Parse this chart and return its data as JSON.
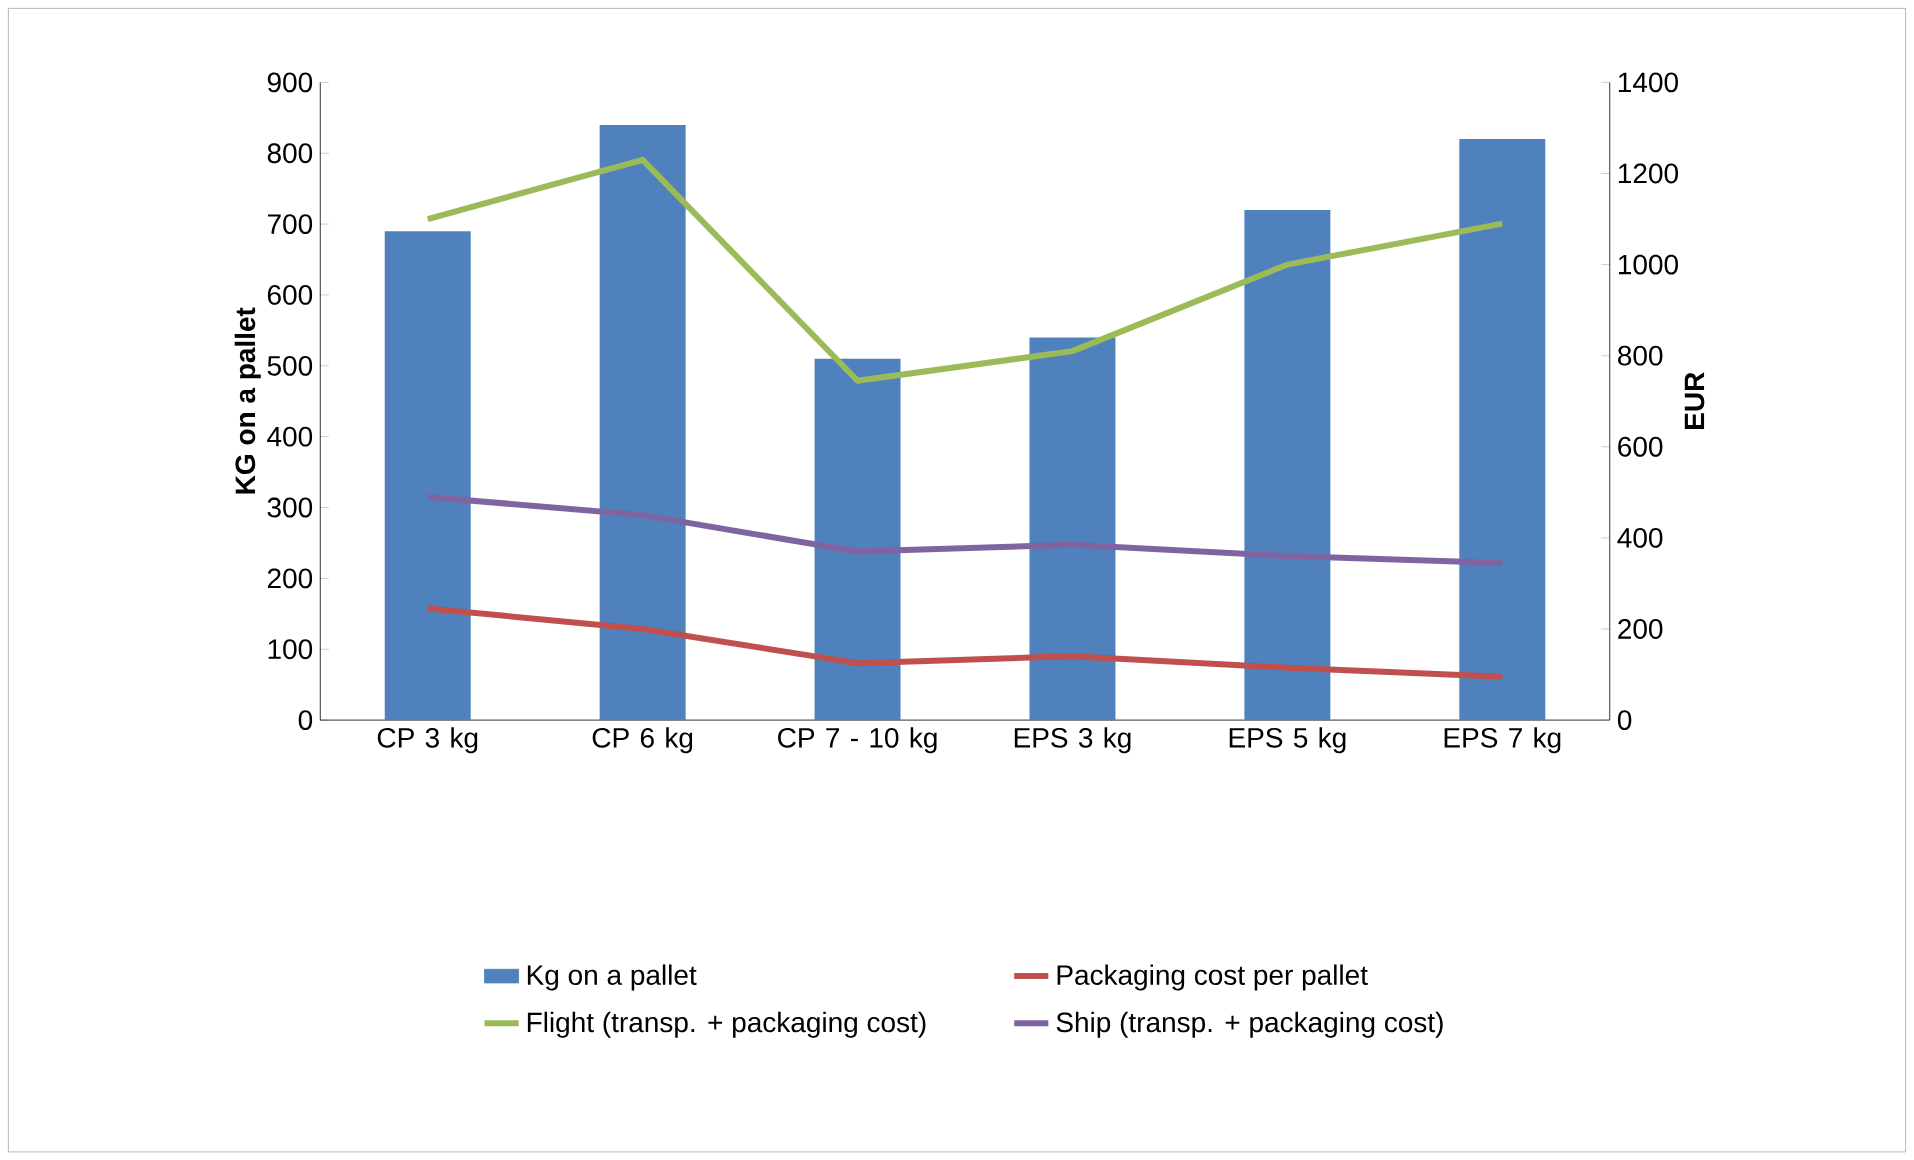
{
  "chart_data": {
    "type": "bar",
    "categories": [
      "CP 3 kg",
      "CP 6 kg",
      "CP 7 - 10 kg",
      "EPS 3 kg",
      "EPS 5 kg",
      "EPS 7 kg"
    ],
    "series": [
      {
        "name": "Kg on a pallet",
        "color": "#4f81bd",
        "values": [
          690,
          840,
          510,
          540,
          720,
          820
        ]
      },
      {
        "name": "Packaging cost per pallet",
        "type": "line",
        "axis": "y2",
        "color": "#c0504d",
        "values": [
          245,
          200,
          125,
          140,
          115,
          95
        ]
      },
      {
        "name": "Flight (transp. + packaging cost)",
        "type": "line",
        "axis": "y2",
        "color": "#9bbb59",
        "values": [
          1100,
          1230,
          745,
          810,
          1000,
          1090
        ]
      },
      {
        "name": "Ship (transp. + packaging cost)",
        "type": "line",
        "axis": "y2",
        "color": "#8064a2",
        "values": [
          490,
          450,
          370,
          385,
          360,
          345
        ]
      }
    ],
    "ylabel": "KG on a pallet",
    "y2label": "EUR",
    "ylim": [
      0,
      900
    ],
    "yticks": [
      0,
      100,
      200,
      300,
      400,
      500,
      600,
      700,
      800,
      900
    ],
    "y2lim": [
      0,
      1400
    ],
    "y2ticks": [
      0,
      200,
      400,
      600,
      800,
      1000,
      1200,
      1400
    ],
    "legend": "bottom",
    "marker": "none",
    "line_style": "solid"
  }
}
